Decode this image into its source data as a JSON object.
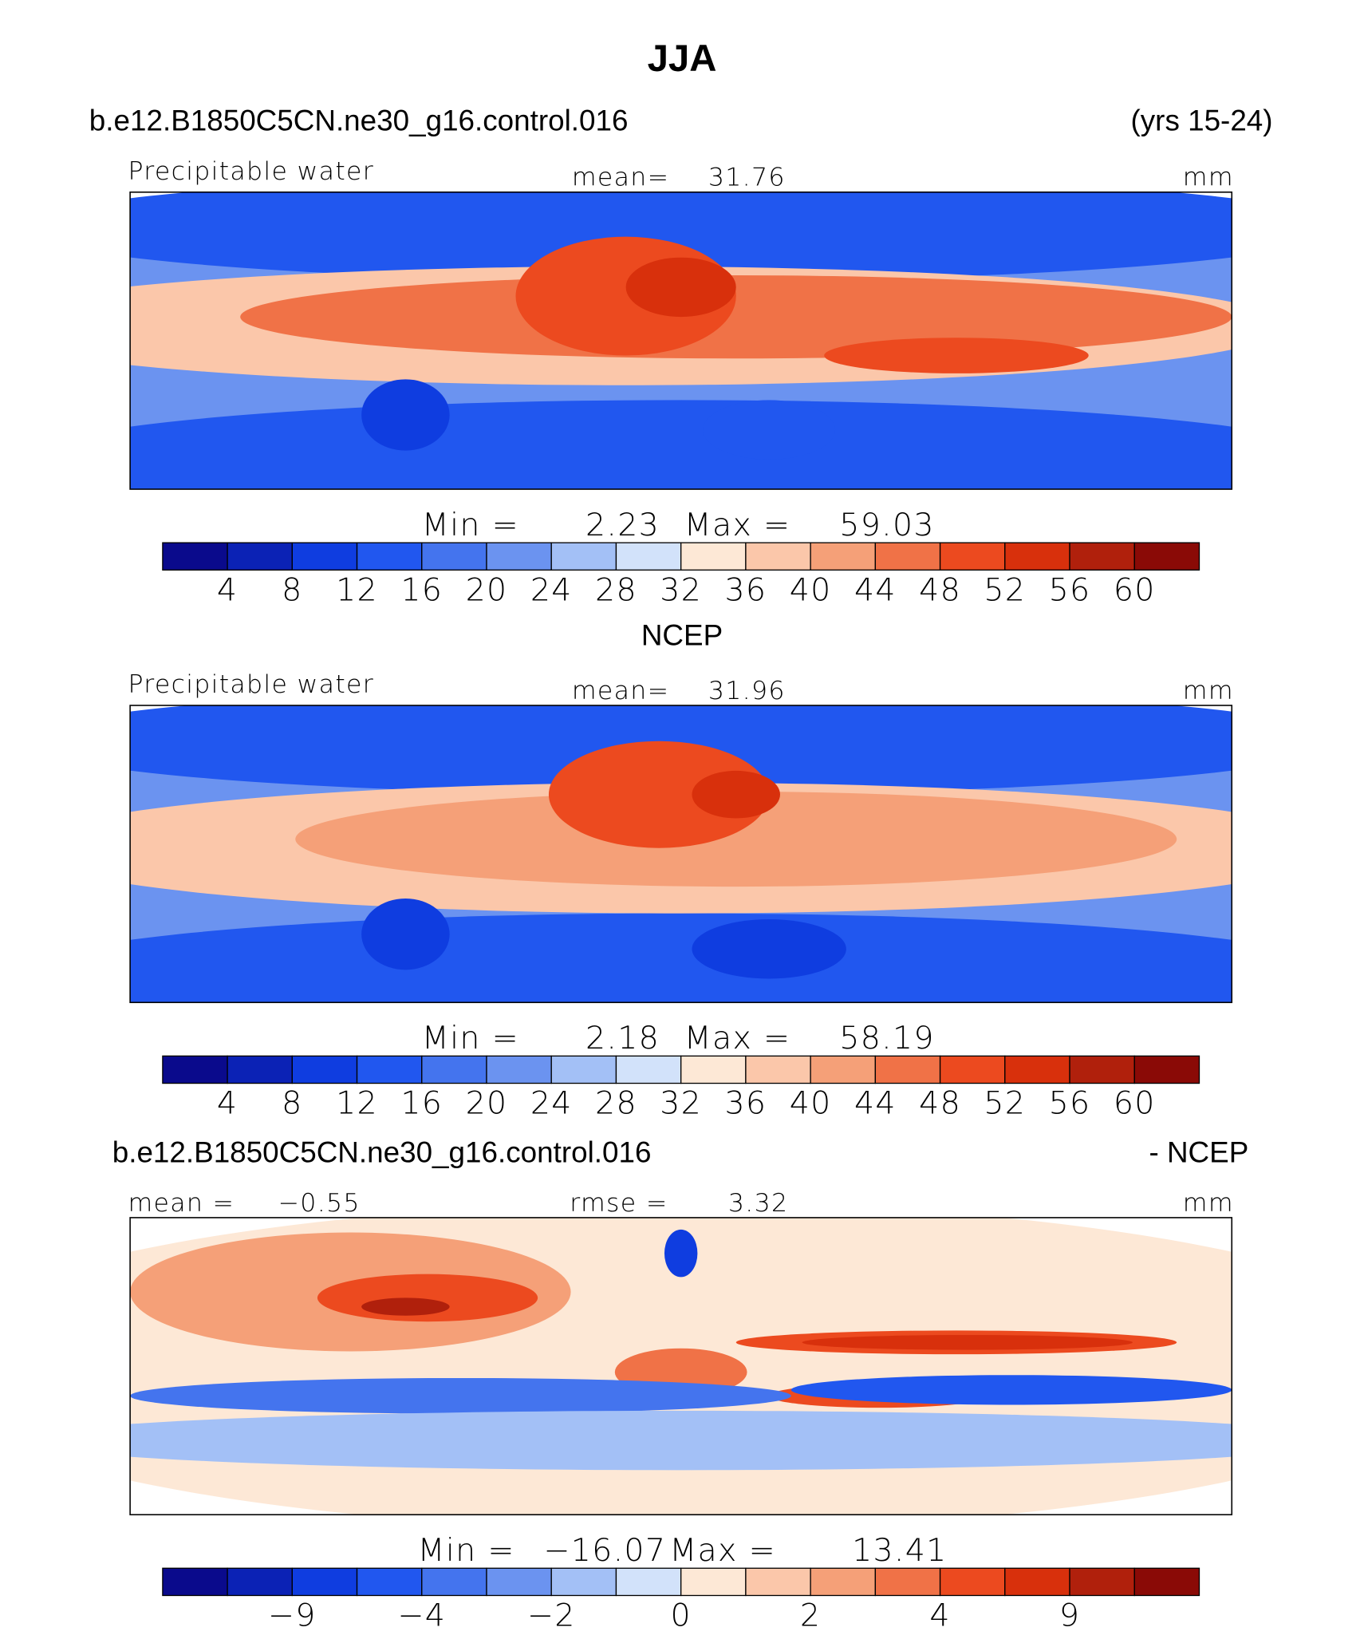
{
  "chart_data": [
    {
      "type": "contour-map",
      "title": "JJA",
      "left_string": "b.e12.B1850C5CN.ne30_g16.control.016",
      "right_string": "(yrs 15-24)",
      "field_label": "Precipitable water",
      "mean_label": "mean=",
      "mean": "31.76",
      "units": "mm",
      "min_label": "Min =",
      "min": "2.23",
      "max_label": "Max =",
      "max": "59.03",
      "colorbar": {
        "colors": [
          "#0a0a8c",
          "#0b22b5",
          "#0f3de0",
          "#2157ef",
          "#4474ee",
          "#6b93f0",
          "#a3c0f6",
          "#d2e2fa",
          "#fde8d6",
          "#fbc7aa",
          "#f5a078",
          "#f07247",
          "#ec4a1f",
          "#d8300c",
          "#b0200c",
          "#8a0a06"
        ],
        "ticks": [
          4,
          8,
          12,
          16,
          20,
          24,
          28,
          32,
          36,
          40,
          44,
          48,
          52,
          56,
          60
        ]
      }
    },
    {
      "type": "contour-map",
      "title": "NCEP",
      "field_label": "Precipitable water",
      "mean_label": "mean=",
      "mean": "31.96",
      "units": "mm",
      "min_label": "Min =",
      "min": "2.18",
      "max_label": "Max =",
      "max": "58.19",
      "colorbar": {
        "colors": [
          "#0a0a8c",
          "#0b22b5",
          "#0f3de0",
          "#2157ef",
          "#4474ee",
          "#6b93f0",
          "#a3c0f6",
          "#d2e2fa",
          "#fde8d6",
          "#fbc7aa",
          "#f5a078",
          "#f07247",
          "#ec4a1f",
          "#d8300c",
          "#b0200c",
          "#8a0a06"
        ],
        "ticks": [
          4,
          8,
          12,
          16,
          20,
          24,
          28,
          32,
          36,
          40,
          44,
          48,
          52,
          56,
          60
        ]
      }
    },
    {
      "type": "contour-map",
      "left_string": "b.e12.B1850C5CN.ne30_g16.control.016",
      "right_string": "- NCEP",
      "mean_label": "mean =",
      "mean": "−0.55",
      "rmse_label": "rmse =",
      "rmse": "3.32",
      "units": "mm",
      "min_label": "Min =",
      "min": "−16.07",
      "max_label": "Max =",
      "max": "13.41",
      "colorbar": {
        "colors": [
          "#0a0a8c",
          "#0b22b5",
          "#0f3de0",
          "#2157ef",
          "#4474ee",
          "#6b93f0",
          "#a3c0f6",
          "#d2e2fa",
          "#fde8d6",
          "#fbc7aa",
          "#f5a078",
          "#f07247",
          "#ec4a1f",
          "#d8300c",
          "#b0200c",
          "#8a0a06"
        ],
        "ticks": [
          {
            "value": -9,
            "label": "−9"
          },
          {
            "value": -4,
            "label": "−4"
          },
          {
            "value": -2,
            "label": "−2"
          },
          0,
          2,
          4,
          9
        ]
      }
    }
  ]
}
